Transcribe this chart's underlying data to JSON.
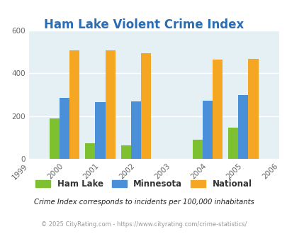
{
  "title": "Ham Lake Violent Crime Index",
  "years": [
    1999,
    2000,
    2001,
    2002,
    2003,
    2004,
    2005,
    2006
  ],
  "bar_years": [
    2000,
    2001,
    2002,
    2004,
    2005
  ],
  "ham_lake": [
    190,
    75,
    65,
    90,
    147
  ],
  "minnesota": [
    285,
    265,
    270,
    272,
    300
  ],
  "national": [
    508,
    508,
    495,
    463,
    469
  ],
  "ham_lake_color": "#7dc130",
  "minnesota_color": "#4a90d9",
  "national_color": "#f5a623",
  "bg_color": "#e5f0f5",
  "title_color": "#2a6db5",
  "ylim": [
    0,
    600
  ],
  "yticks": [
    0,
    200,
    400,
    600
  ],
  "subtitle": "Crime Index corresponds to incidents per 100,000 inhabitants",
  "footer": "© 2025 CityRating.com - https://www.cityrating.com/crime-statistics/",
  "legend_labels": [
    "Ham Lake",
    "Minnesota",
    "National"
  ],
  "bar_width": 0.28
}
